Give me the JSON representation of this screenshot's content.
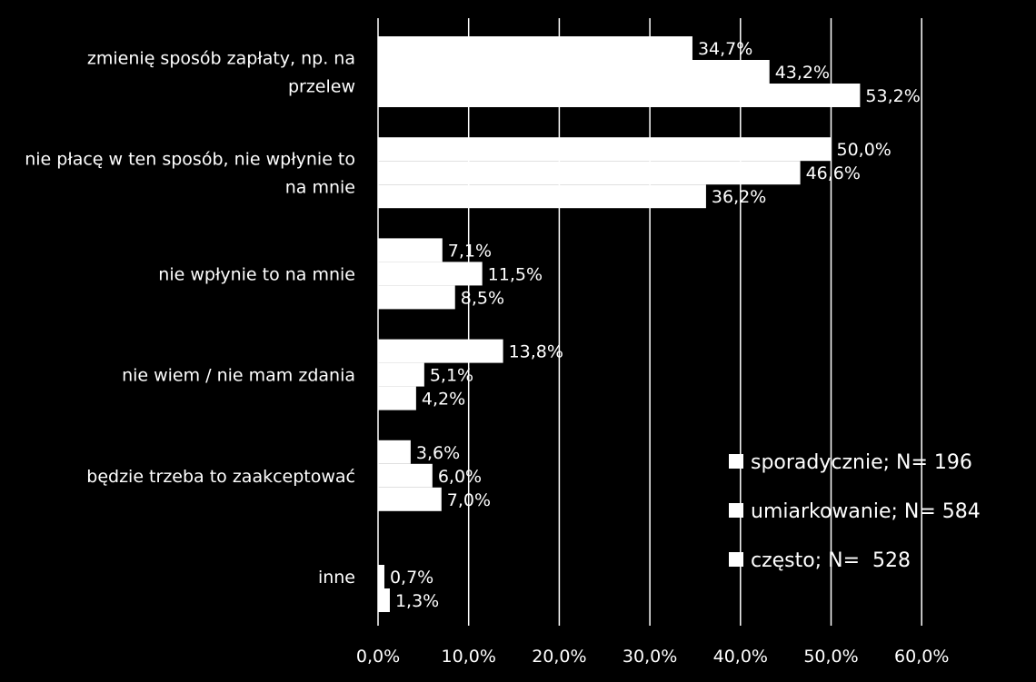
{
  "chart_data": {
    "type": "bar",
    "orientation": "horizontal",
    "categories": [
      "zmienię sposób zapłaty, np. na przelew",
      "nie płacę w ten sposób, nie wpłynie to na mnie",
      "nie wpłynie to na mnie",
      "nie wiem / nie mam zdania",
      "będzie trzeba to zaakceptować",
      "inne"
    ],
    "category_lines": [
      [
        "zmienię sposób zapłaty, np. na",
        "przelew"
      ],
      [
        "nie płacę w ten sposób, nie wpłynie to",
        "na mnie"
      ],
      [
        "nie wpłynie to na mnie"
      ],
      [
        "nie wiem / nie mam zdania"
      ],
      [
        "będzie trzeba to zaakceptować"
      ],
      [
        "inne"
      ]
    ],
    "series": [
      {
        "name": "sporadycznie; N= 196",
        "values": [
          34.7,
          50.0,
          7.1,
          13.8,
          3.6,
          null
        ],
        "labels": [
          "34,7%",
          "50,0%",
          "7,1%",
          "13,8%",
          "3,6%",
          ""
        ]
      },
      {
        "name": "umiarkowanie; N= 584",
        "values": [
          43.2,
          46.6,
          11.5,
          5.1,
          6.0,
          0.7
        ],
        "labels": [
          "43,2%",
          "46,6%",
          "11,5%",
          "5,1%",
          "6,0%",
          "0,7%"
        ]
      },
      {
        "name": "często; N=  528",
        "values": [
          53.2,
          36.2,
          8.5,
          4.2,
          7.0,
          1.3
        ],
        "labels": [
          "53,2%",
          "36,2%",
          "8,5%",
          "4,2%",
          "7,0%",
          "1,3%"
        ]
      }
    ],
    "xlim": [
      0,
      60
    ],
    "x_ticks": [
      "0,0%",
      "10,0%",
      "20,0%",
      "30,0%",
      "40,0%",
      "50,0%",
      "60,0%"
    ],
    "grid": true,
    "legend_position": "bottom-right",
    "colors": {
      "background": "#000000",
      "bars": "#ffffff",
      "text": "#ffffff",
      "grid": "#ffffff"
    }
  }
}
